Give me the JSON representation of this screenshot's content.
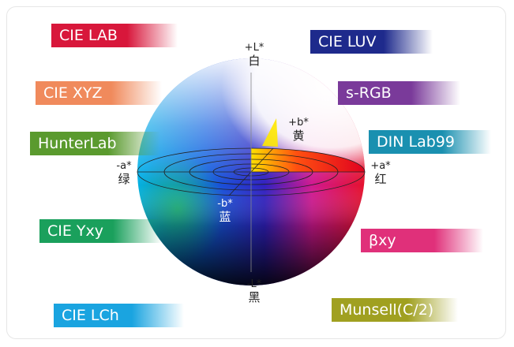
{
  "color_spaces": [
    "CIE LAB",
    "CIE XYZ",
    "HunterLab",
    "CIE Yxy",
    "CIE LCh",
    "CIE LUV",
    "s-RGB",
    "DIN Lab99",
    "βxy",
    "Munsell(C/2)"
  ],
  "axes": [
    {
      "symbol": "+L*",
      "name": "白"
    },
    {
      "symbol": "+b*",
      "name": "黄"
    },
    {
      "symbol": "-a*",
      "name": "绿"
    },
    {
      "symbol": "+a*",
      "name": "红"
    },
    {
      "symbol": "-b*",
      "name": "蓝"
    },
    {
      "symbol": "-L*",
      "name": "黑"
    }
  ]
}
